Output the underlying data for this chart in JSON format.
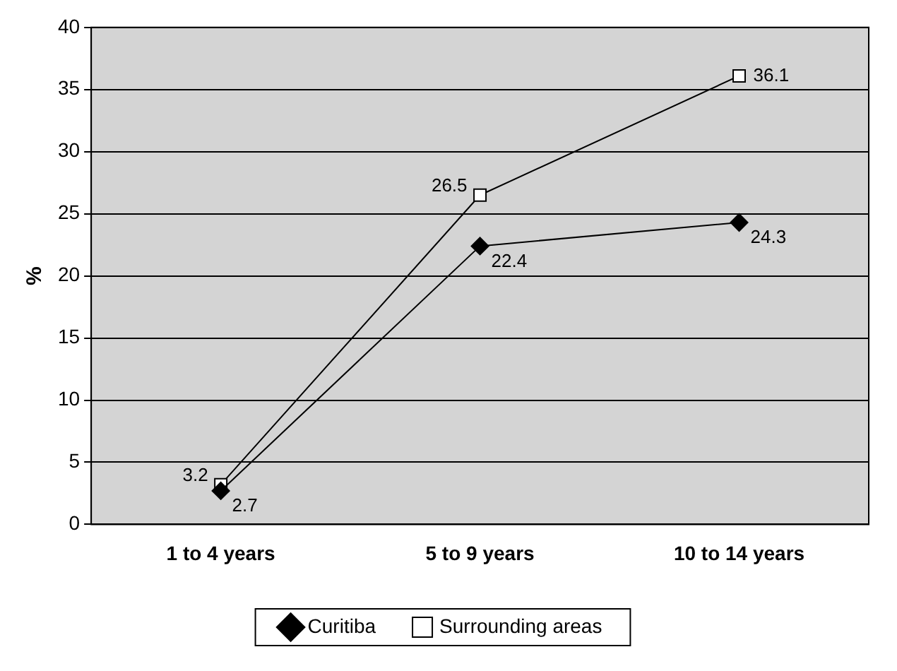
{
  "chart_data": {
    "type": "line",
    "ylabel": "%",
    "categories": [
      "1 to 4 years",
      "5 to 9 years",
      "10 to 14 years"
    ],
    "series": [
      {
        "name": "Curitiba",
        "color": "#000000",
        "marker": "diamond",
        "values": [
          2.7,
          22.4,
          24.3
        ]
      },
      {
        "name": "Surrounding areas",
        "color": "#000000",
        "marker": "square",
        "values": [
          3.2,
          26.5,
          36.1
        ]
      }
    ],
    "ylim": [
      0,
      40
    ],
    "yticks": [
      0,
      5,
      10,
      15,
      20,
      25,
      30,
      35,
      40
    ],
    "grid": "y",
    "legend": "bottom",
    "data_labels": true
  }
}
